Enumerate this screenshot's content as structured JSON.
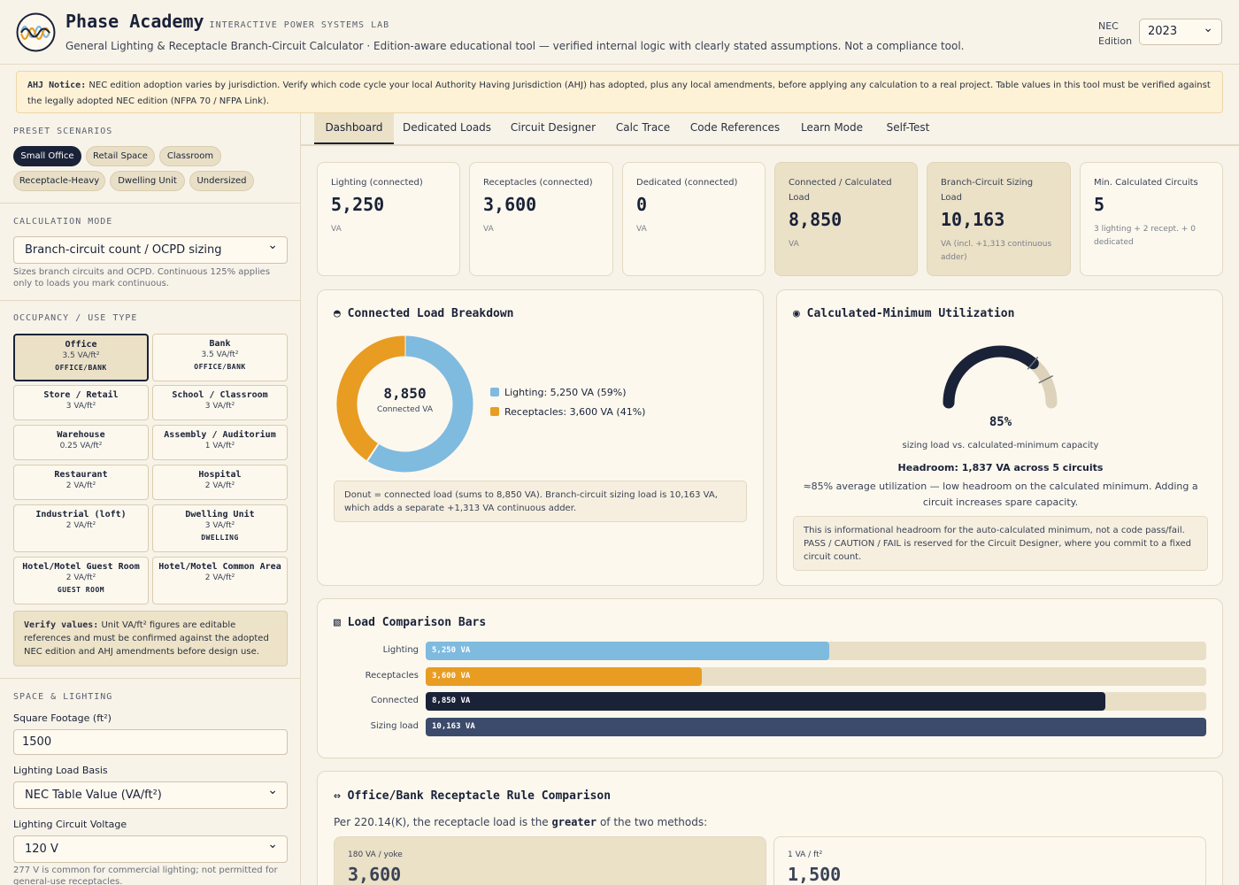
{
  "header": {
    "brand": "Phase Academy",
    "brand_sub": "INTERACTIVE POWER SYSTEMS LAB",
    "tagline": "General Lighting & Receptacle Branch-Circuit Calculator · Edition-aware educational tool — verified internal logic with clearly stated assumptions. Not a compliance tool.",
    "nec_label_1": "NEC",
    "nec_label_2": "Edition",
    "edition_value": "2023"
  },
  "notice": {
    "label": "AHJ Notice:",
    "text": "NEC edition adoption varies by jurisdiction. Verify which code cycle your local Authority Having Jurisdiction (AHJ) has adopted, plus any local amendments, before applying any calculation to a real project. Table values in this tool must be verified against the legally adopted NEC edition (NFPA 70 / NFPA Link)."
  },
  "sidebar": {
    "presets_title": "PRESET SCENARIOS",
    "presets": [
      "Small Office",
      "Retail Space",
      "Classroom",
      "Receptacle-Heavy",
      "Dwelling Unit",
      "Undersized"
    ],
    "mode_title": "CALCULATION MODE",
    "mode_value": "Branch-circuit count / OCPD sizing",
    "mode_hint": "Sizes branch circuits and OCPD. Continuous 125% applies only to loads you mark continuous.",
    "occ_title": "OCCUPANCY / USE TYPE",
    "occupancies": [
      {
        "name": "Office",
        "rate": "3.5 VA/ft²",
        "tag": "OFFICE/BANK"
      },
      {
        "name": "Bank",
        "rate": "3.5 VA/ft²",
        "tag": "OFFICE/BANK"
      },
      {
        "name": "Store / Retail",
        "rate": "3 VA/ft²",
        "tag": ""
      },
      {
        "name": "School / Classroom",
        "rate": "3 VA/ft²",
        "tag": ""
      },
      {
        "name": "Warehouse",
        "rate": "0.25 VA/ft²",
        "tag": ""
      },
      {
        "name": "Assembly / Auditorium",
        "rate": "1 VA/ft²",
        "tag": ""
      },
      {
        "name": "Restaurant",
        "rate": "2 VA/ft²",
        "tag": ""
      },
      {
        "name": "Hospital",
        "rate": "2 VA/ft²",
        "tag": ""
      },
      {
        "name": "Industrial (loft)",
        "rate": "2 VA/ft²",
        "tag": ""
      },
      {
        "name": "Dwelling Unit",
        "rate": "3 VA/ft²",
        "tag": "DWELLING"
      },
      {
        "name": "Hotel/Motel Guest Room",
        "rate": "2 VA/ft²",
        "tag": "GUEST ROOM"
      },
      {
        "name": "Hotel/Motel Common Area",
        "rate": "2 VA/ft²",
        "tag": ""
      }
    ],
    "verify_label": "Verify values:",
    "verify_text": "Unit VA/ft² figures are editable references and must be confirmed against the adopted NEC edition and AHJ amendments before design use.",
    "space_title": "SPACE & LIGHTING",
    "sqft_label": "Square Footage (ft²)",
    "sqft_value": "1500",
    "basis_label": "Lighting Load Basis",
    "basis_value": "NEC Table Value (VA/ft²)",
    "voltage_label": "Lighting Circuit Voltage",
    "voltage_value": "120 V",
    "voltage_hint": "277 V is common for commercial lighting; not permitted for general-use receptacles."
  },
  "tabs": [
    "Dashboard",
    "Dedicated Loads",
    "Circuit Designer",
    "Calc Trace",
    "Code References",
    "Learn Mode",
    "Self-Test"
  ],
  "stats": [
    {
      "label": "Lighting (connected)",
      "value": "5,250",
      "unit": "VA"
    },
    {
      "label": "Receptacles (connected)",
      "value": "3,600",
      "unit": "VA"
    },
    {
      "label": "Dedicated (connected)",
      "value": "0",
      "unit": "VA"
    },
    {
      "label": "Connected / Calculated Load",
      "value": "8,850",
      "unit": "VA"
    },
    {
      "label": "Branch-Circuit Sizing Load",
      "value": "10,163",
      "unit": "VA (incl. +1,313 continuous adder)"
    },
    {
      "label": "Min. Calculated Circuits",
      "value": "5",
      "unit": "3 lighting + 2 recept. + 0 dedicated"
    }
  ],
  "breakdown": {
    "icon": "◓",
    "title": "Connected Load Breakdown",
    "center_value": "8,850",
    "center_label": "Connected VA",
    "legend": [
      "Lighting: 5,250 VA (59%)",
      "Receptacles: 3,600 VA (41%)"
    ],
    "note": "Donut = connected load (sums to 8,850 VA). Branch-circuit sizing load is 10,163 VA, which adds a separate +1,313 VA continuous adder."
  },
  "utilization": {
    "icon": "◉",
    "title": "Calculated-Minimum Utilization",
    "percent": 85,
    "percent_label": "85%",
    "sub": "sizing load vs. calculated-minimum capacity",
    "headroom": "Headroom: 1,837 VA across 5 circuits",
    "desc": "≈85% average utilization — low headroom on the calculated minimum. Adding a circuit increases spare capacity.",
    "note": "This is informational headroom for the auto-calculated minimum, not a code pass/fail. PASS / CAUTION / FAIL is reserved for the Circuit Designer, where you commit to a fixed circuit count."
  },
  "comparison": {
    "icon": "▧",
    "title": "Load Comparison Bars"
  },
  "chart_data": {
    "type": "bar",
    "title": "Load Comparison Bars",
    "categories": [
      "Lighting",
      "Receptacles",
      "Connected",
      "Sizing load"
    ],
    "values": [
      5250,
      3600,
      8850,
      10163
    ],
    "value_labels": [
      "5,250 VA",
      "3,600 VA",
      "8,850 VA",
      "10,163 VA"
    ],
    "colors": [
      "#7fbadf",
      "#e89c22",
      "#1a2238",
      "#3c4a6b"
    ],
    "xlim": [
      0,
      10163
    ]
  },
  "rule": {
    "icon": "⇔",
    "title": "Office/Bank Receptacle Rule Comparison",
    "intro_a": "Per 220.14(K), the receptacle load is the",
    "intro_b": "greater",
    "intro_c": "of the two methods:",
    "methods": [
      {
        "label": "180 VA / yoke",
        "value": "3,600"
      },
      {
        "label": "1 VA / ft²",
        "value": "1,500"
      }
    ]
  },
  "colors": {
    "navy": "#1a2238",
    "orange": "#e89c22",
    "blue": "#7fbadf",
    "tan": "#ebe1c7"
  }
}
